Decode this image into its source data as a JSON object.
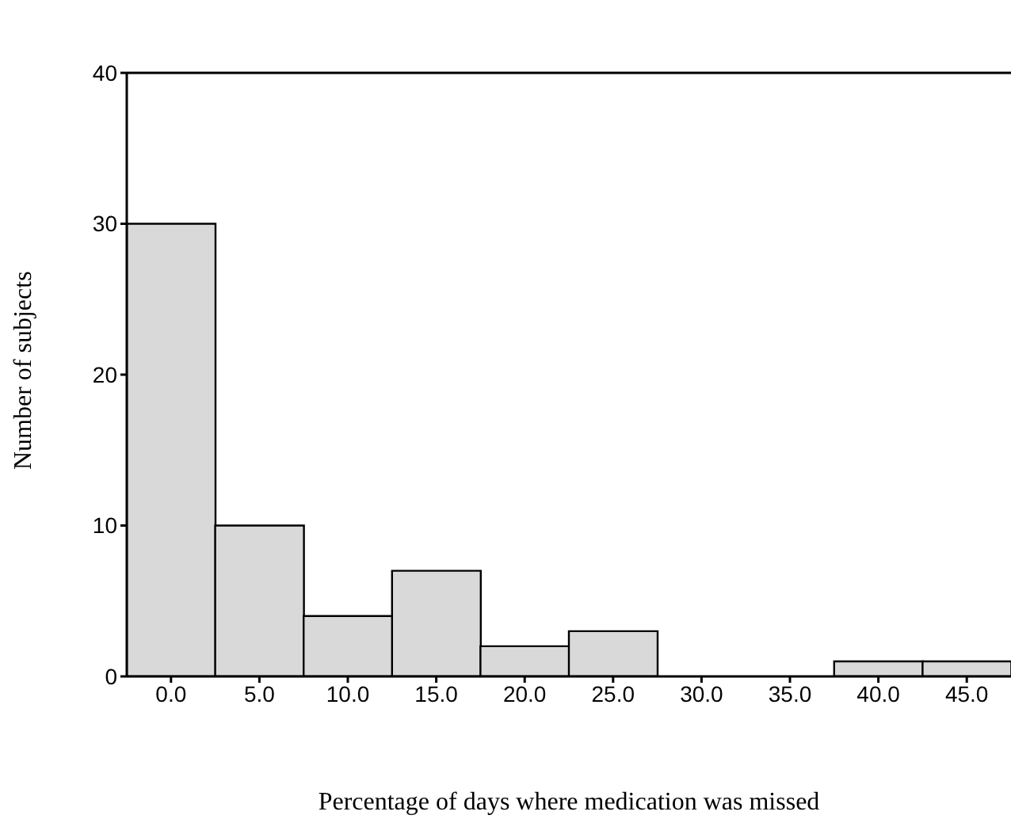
{
  "chart_data": {
    "type": "histogram",
    "xlabel": "Percentage of days where medication was missed",
    "ylabel": "Number of subjects",
    "bins": [
      -2.5,
      2.5,
      7.5,
      12.5,
      17.5,
      22.5,
      27.5,
      32.5,
      37.5,
      42.5,
      47.5
    ],
    "values": [
      30,
      10,
      4,
      7,
      2,
      3,
      0,
      0,
      1,
      1
    ],
    "color": "#d9d9d9",
    "xlim": [
      -2.5,
      47.5
    ],
    "xticks": [
      {
        "value": 0,
        "label": "0.0"
      },
      {
        "value": 5,
        "label": "5.0"
      },
      {
        "value": 10,
        "label": "10.0"
      },
      {
        "value": 15,
        "label": "15.0"
      },
      {
        "value": 20,
        "label": "20.0"
      },
      {
        "value": 25,
        "label": "25.0"
      },
      {
        "value": 30,
        "label": "30.0"
      },
      {
        "value": 35,
        "label": "35.0"
      },
      {
        "value": 40,
        "label": "40.0"
      },
      {
        "value": 45,
        "label": "45.0"
      }
    ],
    "ylim": [
      0,
      40
    ],
    "yticks": [
      0,
      10,
      20,
      30,
      40
    ],
    "grid": false,
    "legend": false
  }
}
